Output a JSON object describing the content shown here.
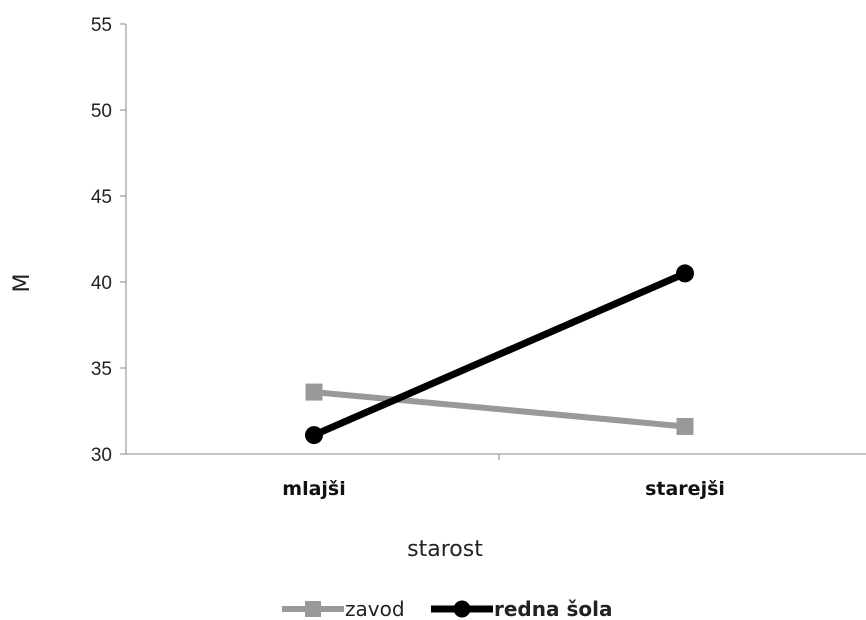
{
  "chart_data": {
    "type": "line",
    "title": "",
    "xlabel": "starost",
    "ylabel": "M",
    "categories": [
      "mlajši",
      "starejši"
    ],
    "ylim": [
      30,
      55
    ],
    "yticks": [
      30,
      35,
      40,
      45,
      50,
      55
    ],
    "grid": false,
    "legend_position": "bottom",
    "series": [
      {
        "name": "zavod",
        "values": [
          33.6,
          31.6
        ],
        "color": "#999999",
        "marker": "square"
      },
      {
        "name": "redna šola",
        "values": [
          31.1,
          40.5
        ],
        "color": "#000000",
        "marker": "circle"
      }
    ]
  }
}
